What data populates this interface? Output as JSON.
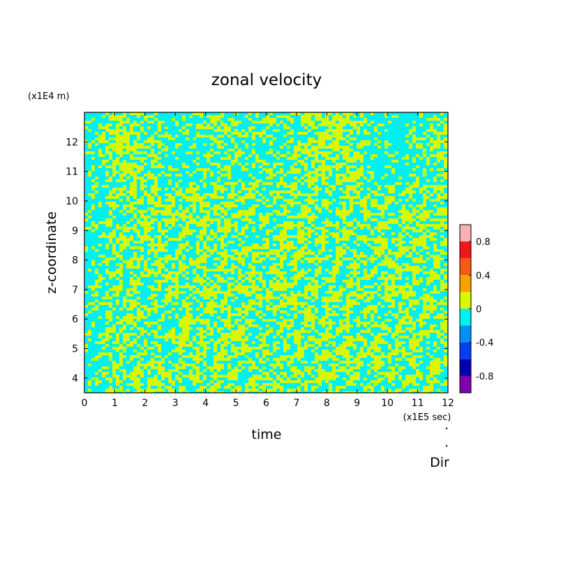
{
  "chart_data": {
    "type": "heatmap",
    "title": "zonal velocity",
    "xlabel": "time",
    "ylabel": "z-coordinate",
    "x_unit": "(x1E5 sec)",
    "y_unit": "(x1E4 m)",
    "footer_label": "Dir",
    "xlim": [
      0,
      12
    ],
    "ylim": [
      3.5,
      13
    ],
    "x_ticks": [
      "0",
      "1",
      "2",
      "3",
      "4",
      "5",
      "6",
      "7",
      "8",
      "9",
      "10",
      "11",
      "12"
    ],
    "y_ticks": [
      "4",
      "5",
      "6",
      "7",
      "8",
      "9",
      "10",
      "11",
      "12"
    ],
    "colorbar": {
      "range": [
        -1,
        1
      ],
      "tick_labels": [
        "0.8",
        "0.4",
        "0",
        "-0.4",
        "-0.8"
      ],
      "tick_values": [
        0.8,
        0.4,
        0,
        -0.4,
        -0.8
      ],
      "levels": [
        {
          "min": 0.8,
          "max": 1.0,
          "color": "#f8b0b0"
        },
        {
          "min": 0.6,
          "max": 0.8,
          "color": "#f01818"
        },
        {
          "min": 0.4,
          "max": 0.6,
          "color": "#f85a10"
        },
        {
          "min": 0.2,
          "max": 0.4,
          "color": "#f8a000"
        },
        {
          "min": 0.0,
          "max": 0.2,
          "color": "#d8f800"
        },
        {
          "min": -0.2,
          "max": 0.0,
          "color": "#00f0f0"
        },
        {
          "min": -0.4,
          "max": -0.2,
          "color": "#0090f8"
        },
        {
          "min": -0.6,
          "max": -0.4,
          "color": "#0040f0"
        },
        {
          "min": -0.8,
          "max": -0.6,
          "color": "#0000b0"
        },
        {
          "min": -1.0,
          "max": -0.8,
          "color": "#8000b0"
        }
      ]
    },
    "field_colors": {
      "positive": "#d8f800",
      "negative": "#00f0f0"
    }
  }
}
